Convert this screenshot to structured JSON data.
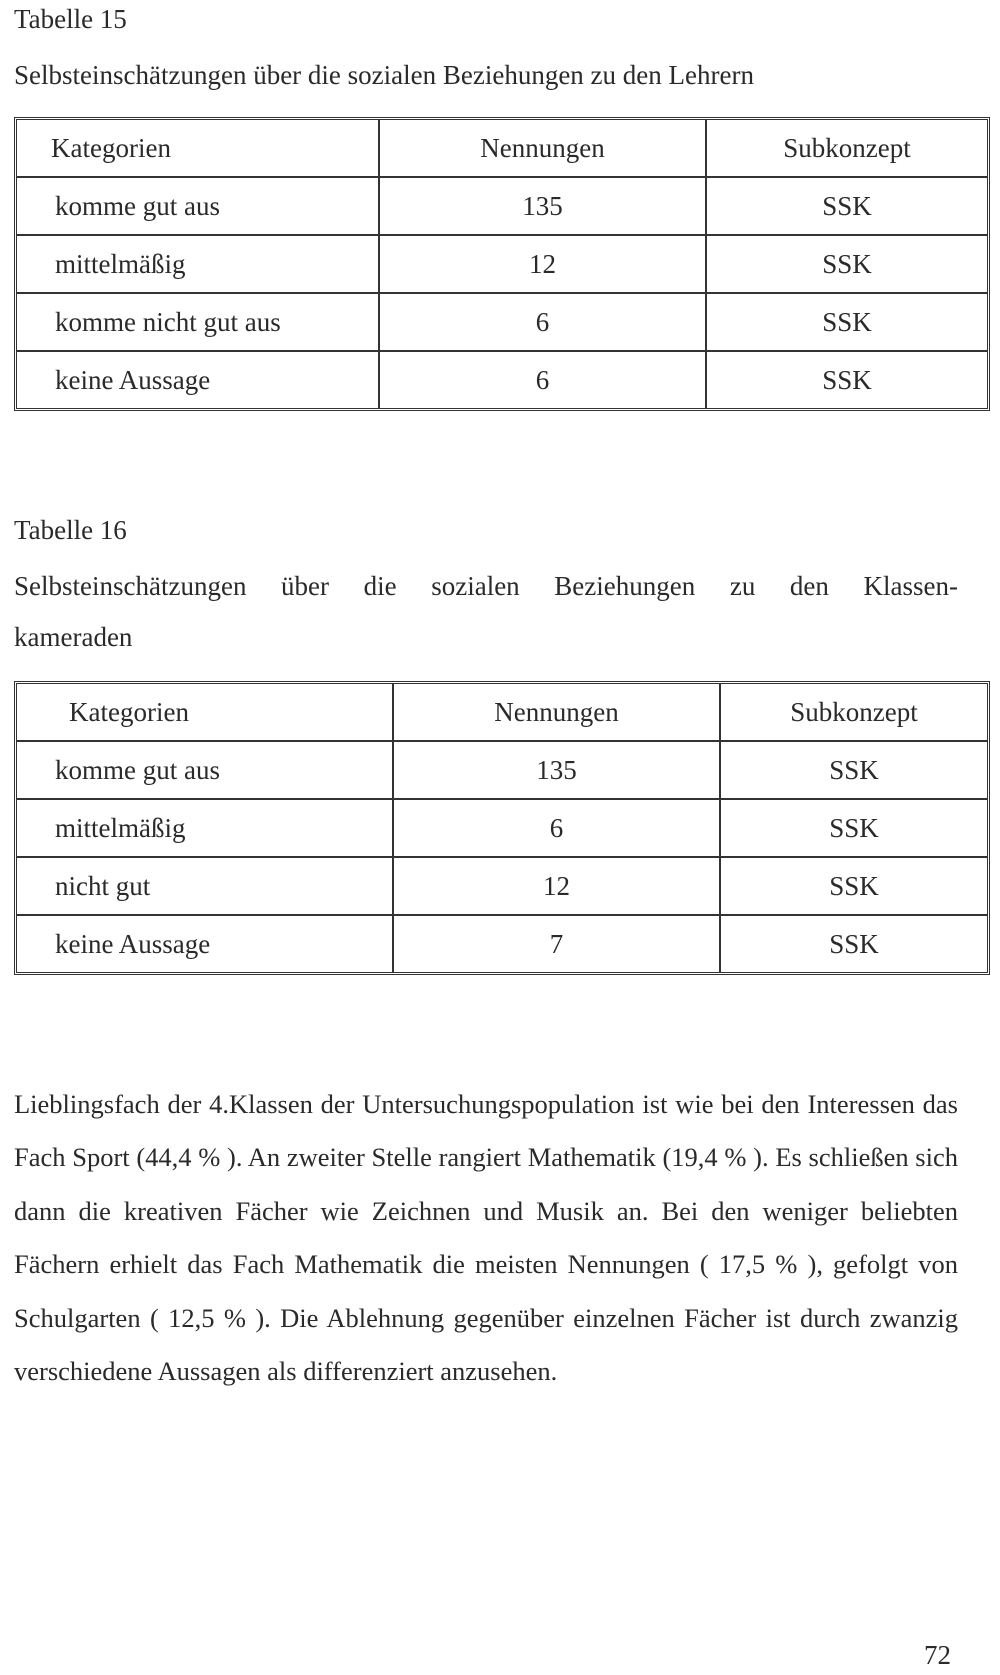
{
  "table15": {
    "label": "Tabelle 15",
    "caption": "Selbsteinschätzungen über die sozialen Beziehungen zu den Lehrern",
    "headers": [
      "Kategorien",
      "Nennungen",
      "Subkonzept"
    ],
    "rows": [
      [
        "komme gut aus",
        "135",
        "SSK"
      ],
      [
        "mittelmäßig",
        "12",
        "SSK"
      ],
      [
        "komme nicht gut aus",
        "6",
        "SSK"
      ],
      [
        "keine Aussage",
        "6",
        "SSK"
      ]
    ]
  },
  "table16": {
    "label": "Tabelle 16",
    "caption_line1": "Selbsteinschätzungen über die sozialen Beziehungen zu den Klassen-",
    "caption_line2": "kameraden",
    "headers": [
      "Kategorien",
      "Nennungen",
      "Subkonzept"
    ],
    "rows": [
      [
        "komme gut aus",
        "135",
        "SSK"
      ],
      [
        "mittelmäßig",
        "6",
        "SSK"
      ],
      [
        "nicht gut",
        "12",
        "SSK"
      ],
      [
        "keine Aussage",
        "7",
        "SSK"
      ]
    ]
  },
  "paragraph": "Lieblingsfach der 4.Klassen der Untersuchungspopulation ist wie bei den Interessen das Fach Sport (44,4 % ). An zweiter Stelle rangiert Mathematik (19,4 % ). Es schließen sich dann die kreativen Fächer wie Zeichnen und Musik an. Bei den weniger beliebten Fächern erhielt das Fach Mathematik die meisten Nennungen ( 17,5 % ), gefolgt von Schulgarten ( 12,5 % ). Die Ablehnung gegenüber einzelnen Fächer ist durch zwanzig verschiedene Aussagen als differenziert anzusehen.",
  "page_number": "72"
}
